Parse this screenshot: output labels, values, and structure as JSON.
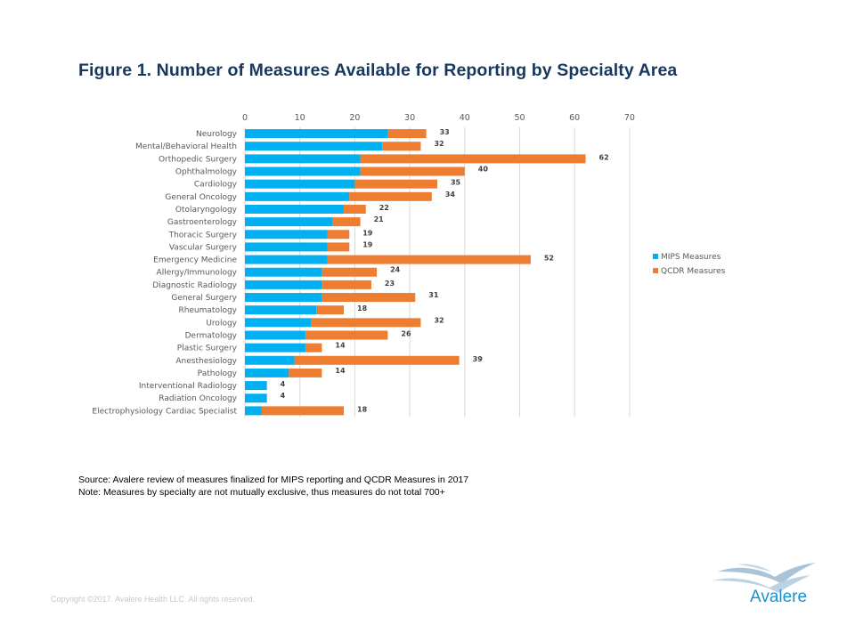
{
  "page": {
    "title": "Figure 1. Number of Measures Available for Reporting by Specialty Area",
    "source_note": "Source: Avalere review of measures finalized for MIPS reporting and QCDR  Measures in 2017",
    "note": "Note:  Measures by specialty are not mutually  exclusive, thus measures do not total 700+",
    "copyright": "Copyright ©2017. Avalere Health LLC. All rights reserved.",
    "logo_text": "Avalere"
  },
  "colors": {
    "mips": "#00b0f0",
    "qcdr": "#ed7d31",
    "title": "#17375e",
    "grid": "#d9d9d9",
    "logo": "#1b90d0"
  },
  "chart_data": {
    "type": "bar",
    "orientation": "horizontal",
    "stacked": true,
    "title": "Figure 1. Number of Measures Available for Reporting by Specialty Area",
    "xlabel": "",
    "ylabel": "",
    "xlim": [
      0,
      70
    ],
    "x_ticks": [
      0,
      10,
      20,
      30,
      40,
      50,
      60,
      70
    ],
    "x_axis_position": "top",
    "grid": true,
    "legend_position": "right",
    "categories": [
      "Neurology",
      "Mental/Behavioral Health",
      "Orthopedic Surgery",
      "Ophthalmology",
      "Cardiology",
      "General Oncology",
      "Otolaryngology",
      "Gastroenterology",
      "Thoracic Surgery",
      "Vascular Surgery",
      "Emergency Medicine",
      "Allergy/Immunology",
      "Diagnostic Radiology",
      "General Surgery",
      "Rheumatology",
      "Urology",
      "Dermatology",
      "Plastic Surgery",
      "Anesthesiology",
      "Pathology",
      "Interventional Radiology",
      "Radiation Oncology",
      "Electrophysiology Cardiac Specialist"
    ],
    "series": [
      {
        "name": "MIPS Measures",
        "values": [
          26,
          25,
          21,
          21,
          20,
          19,
          18,
          16,
          15,
          15,
          15,
          14,
          14,
          14,
          13,
          12,
          11,
          11,
          9,
          8,
          4,
          4,
          3
        ]
      },
      {
        "name": "QCDR Measures",
        "values": [
          7,
          7,
          41,
          19,
          15,
          15,
          4,
          5,
          4,
          4,
          37,
          10,
          9,
          17,
          5,
          20,
          15,
          3,
          30,
          6,
          0,
          0,
          15
        ]
      }
    ],
    "totals": [
      33,
      32,
      62,
      40,
      35,
      34,
      22,
      21,
      19,
      19,
      52,
      24,
      23,
      31,
      18,
      32,
      26,
      14,
      39,
      14,
      4,
      4,
      18
    ]
  }
}
